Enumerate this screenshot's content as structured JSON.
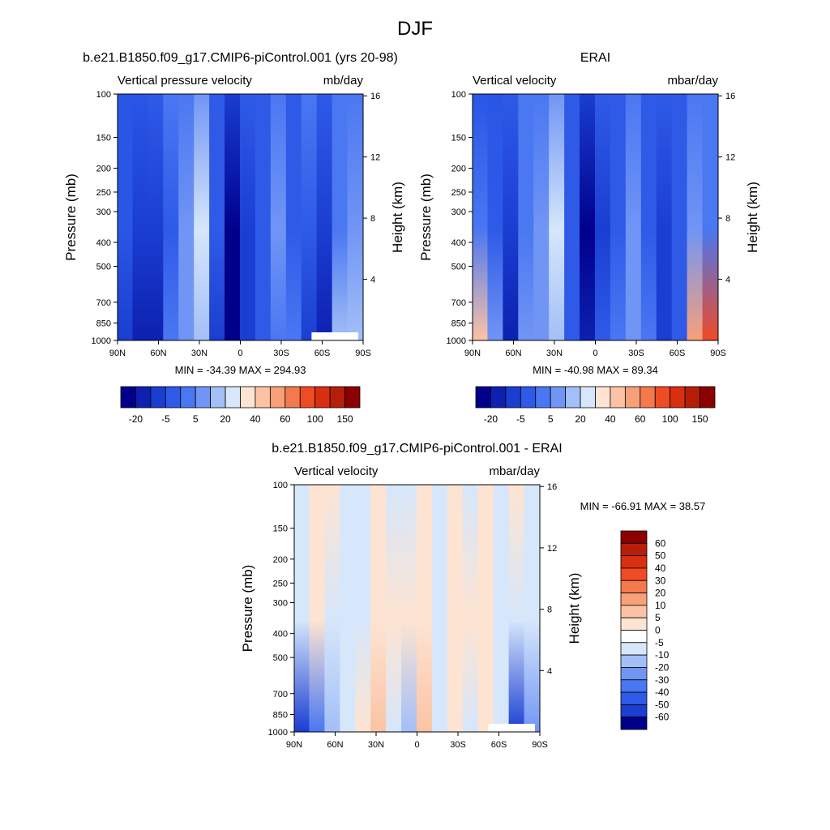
{
  "figure": {
    "title": "DJF"
  },
  "chart_data": [
    {
      "type": "heatmap",
      "title": "b.e21.B1850.f09_g17.CMIP6-piControl.001 (yrs 20-98)",
      "subtitle_left": "Vertical pressure velocity",
      "subtitle_right": "mb/day",
      "xlabel": "",
      "ylabel": "Pressure (mb)",
      "ylabel_right": "Height (km)",
      "x_ticks": [
        "90N",
        "60N",
        "30N",
        "0",
        "30S",
        "60S",
        "90S"
      ],
      "x_values": [
        90,
        60,
        30,
        0,
        -30,
        -60,
        -90
      ],
      "y_ticks": [
        "100",
        "150",
        "200",
        "250",
        "300",
        "400",
        "500",
        "700",
        "850",
        "1000"
      ],
      "y_values": [
        100,
        150,
        200,
        250,
        300,
        400,
        500,
        700,
        850,
        1000
      ],
      "y_scale": "log-pressure",
      "ylim": [
        1000,
        100
      ],
      "height_ticks": [
        "16",
        "12",
        "8",
        "4"
      ],
      "height_values": [
        16,
        12,
        8,
        4
      ],
      "stats": "MIN = -34.39  MAX = 294.93",
      "colorbar": {
        "orientation": "horizontal",
        "labels": [
          "-20",
          "-5",
          "5",
          "20",
          "40",
          "60",
          "100",
          "150"
        ],
        "colors": [
          "#00008b",
          "#0d20b0",
          "#1a3ed1",
          "#2f5ae8",
          "#4a77f2",
          "#7195f5",
          "#a3bff7",
          "#d6e6fb",
          "#fde4d2",
          "#fbc3a4",
          "#f8a078",
          "#f47a4e",
          "#ef4b24",
          "#d92f10",
          "#b51f09",
          "#8b0000"
        ]
      },
      "columns": [
        {
          "lat": 90,
          "top": "#2a56e6",
          "mid": "#2a56e6",
          "bot": "#1a3ed1"
        },
        {
          "lat": 75,
          "top": "#2a56e6",
          "mid": "#1a3ed1",
          "bot": "#0d20b0"
        },
        {
          "lat": 60,
          "top": "#2f5ae8",
          "mid": "#1a3ed1",
          "bot": "#0d20b0"
        },
        {
          "lat": 45,
          "top": "#4a77f2",
          "mid": "#2f5ae8",
          "bot": "#4a77f2"
        },
        {
          "lat": 30,
          "top": "#4a77f2",
          "mid": "#7195f5",
          "bot": "#7195f5"
        },
        {
          "lat": 20,
          "top": "#7195f5",
          "mid": "#d6e6fb",
          "bot": "#a3bff7"
        },
        {
          "lat": 10,
          "top": "#2f5ae8",
          "mid": "#2f5ae8",
          "bot": "#1a3ed1"
        },
        {
          "lat": 0,
          "top": "#1a3ed1",
          "mid": "#00008b",
          "bot": "#00008b"
        },
        {
          "lat": -10,
          "top": "#2f5ae8",
          "mid": "#1a3ed1",
          "bot": "#1a3ed1"
        },
        {
          "lat": -20,
          "top": "#2f5ae8",
          "mid": "#2f5ae8",
          "bot": "#2f5ae8"
        },
        {
          "lat": -30,
          "top": "#4a77f2",
          "mid": "#7195f5",
          "bot": "#4a77f2"
        },
        {
          "lat": -40,
          "top": "#2f5ae8",
          "mid": "#2f5ae8",
          "bot": "#4a77f2"
        },
        {
          "lat": -50,
          "top": "#4a77f2",
          "mid": "#2f5ae8",
          "bot": "#1a3ed1"
        },
        {
          "lat": -60,
          "top": "#2f5ae8",
          "mid": "#1a3ed1",
          "bot": "#0d20b0"
        },
        {
          "lat": -75,
          "top": "#4a77f2",
          "mid": "#4a77f2",
          "bot": "#a3bff7"
        },
        {
          "lat": -90,
          "top": "#4a77f2",
          "mid": "#7195f5",
          "bot": "#a3bff7"
        }
      ]
    },
    {
      "type": "heatmap",
      "title": "ERAI",
      "subtitle_left": "Vertical velocity",
      "subtitle_right": "mbar/day",
      "xlabel": "",
      "ylabel": "Pressure (mb)",
      "ylabel_right": "Height (km)",
      "x_ticks": [
        "90N",
        "60N",
        "30N",
        "0",
        "30S",
        "60S",
        "90S"
      ],
      "x_values": [
        90,
        60,
        30,
        0,
        -30,
        -60,
        -90
      ],
      "y_ticks": [
        "100",
        "150",
        "200",
        "250",
        "300",
        "400",
        "500",
        "700",
        "850",
        "1000"
      ],
      "y_values": [
        100,
        150,
        200,
        250,
        300,
        400,
        500,
        700,
        850,
        1000
      ],
      "y_scale": "log-pressure",
      "ylim": [
        1000,
        100
      ],
      "height_ticks": [
        "16",
        "12",
        "8",
        "4"
      ],
      "height_values": [
        16,
        12,
        8,
        4
      ],
      "stats": "MIN = -40.98  MAX =  89.34",
      "colorbar": {
        "orientation": "horizontal",
        "labels": [
          "-20",
          "-5",
          "5",
          "20",
          "40",
          "60",
          "100",
          "150"
        ],
        "colors": [
          "#00008b",
          "#0d20b0",
          "#1a3ed1",
          "#2f5ae8",
          "#4a77f2",
          "#7195f5",
          "#a3bff7",
          "#d6e6fb",
          "#fde4d2",
          "#fbc3a4",
          "#f8a078",
          "#f47a4e",
          "#ef4b24",
          "#d92f10",
          "#b51f09",
          "#8b0000"
        ]
      },
      "columns": [
        {
          "lat": 90,
          "top": "#2a56e6",
          "mid": "#4a77f2",
          "bot": "#fbc3a4"
        },
        {
          "lat": 75,
          "top": "#2a56e6",
          "mid": "#2f5ae8",
          "bot": "#7195f5"
        },
        {
          "lat": 60,
          "top": "#2f5ae8",
          "mid": "#1a3ed1",
          "bot": "#0d20b0"
        },
        {
          "lat": 45,
          "top": "#4a77f2",
          "mid": "#4a77f2",
          "bot": "#7195f5"
        },
        {
          "lat": 30,
          "top": "#4a77f2",
          "mid": "#7195f5",
          "bot": "#7195f5"
        },
        {
          "lat": 20,
          "top": "#7195f5",
          "mid": "#d6e6fb",
          "bot": "#a3bff7"
        },
        {
          "lat": 10,
          "top": "#2f5ae8",
          "mid": "#2f5ae8",
          "bot": "#2f5ae8"
        },
        {
          "lat": 0,
          "top": "#1a3ed1",
          "mid": "#00008b",
          "bot": "#0d20b0"
        },
        {
          "lat": -10,
          "top": "#2f5ae8",
          "mid": "#1a3ed1",
          "bot": "#2f5ae8"
        },
        {
          "lat": -20,
          "top": "#2f5ae8",
          "mid": "#2f5ae8",
          "bot": "#4a77f2"
        },
        {
          "lat": -30,
          "top": "#4a77f2",
          "mid": "#7195f5",
          "bot": "#7195f5"
        },
        {
          "lat": -40,
          "top": "#2f5ae8",
          "mid": "#2f5ae8",
          "bot": "#4a77f2"
        },
        {
          "lat": -50,
          "top": "#2f5ae8",
          "mid": "#1a3ed1",
          "bot": "#1a3ed1"
        },
        {
          "lat": -60,
          "top": "#2f5ae8",
          "mid": "#2f5ae8",
          "bot": "#2f5ae8"
        },
        {
          "lat": -75,
          "top": "#4a77f2",
          "mid": "#7195f5",
          "bot": "#f8a078"
        },
        {
          "lat": -90,
          "top": "#4a77f2",
          "mid": "#4a77f2",
          "bot": "#ef4b24"
        }
      ]
    },
    {
      "type": "heatmap",
      "title": "b.e21.B1850.f09_g17.CMIP6-piControl.001 - ERAI",
      "subtitle_left": "Vertical velocity",
      "subtitle_right": "mbar/day",
      "xlabel": "",
      "ylabel": "Pressure (mb)",
      "ylabel_right": "Height (km)",
      "x_ticks": [
        "90N",
        "60N",
        "30N",
        "0",
        "30S",
        "60S",
        "90S"
      ],
      "x_values": [
        90,
        60,
        30,
        0,
        -30,
        -60,
        -90
      ],
      "y_ticks": [
        "100",
        "150",
        "200",
        "250",
        "300",
        "400",
        "500",
        "700",
        "850",
        "1000"
      ],
      "y_values": [
        100,
        150,
        200,
        250,
        300,
        400,
        500,
        700,
        850,
        1000
      ],
      "y_scale": "log-pressure",
      "ylim": [
        1000,
        100
      ],
      "height_ticks": [
        "16",
        "12",
        "8",
        "4"
      ],
      "height_values": [
        16,
        12,
        8,
        4
      ],
      "stats": "MIN = -66.91  MAX =  38.57",
      "colorbar": {
        "orientation": "vertical",
        "labels": [
          "60",
          "50",
          "40",
          "30",
          "20",
          "10",
          "5",
          "0",
          "-5",
          "-10",
          "-20",
          "-30",
          "-40",
          "-50",
          "-60"
        ],
        "colors": [
          "#8b0000",
          "#b51f09",
          "#d92f10",
          "#ef4b24",
          "#f47a4e",
          "#f8a078",
          "#fbc3a4",
          "#fde4d2",
          "#ffffff",
          "#d6e6fb",
          "#a3bff7",
          "#7195f5",
          "#4a77f2",
          "#2f5ae8",
          "#1a3ed1",
          "#00008b"
        ]
      },
      "columns": [
        {
          "lat": 90,
          "top": "#d6e6fb",
          "mid": "#d6e6fb",
          "bot": "#1a3ed1"
        },
        {
          "lat": 75,
          "top": "#fde4d2",
          "mid": "#fde4d2",
          "bot": "#4a77f2"
        },
        {
          "lat": 60,
          "top": "#fde4d2",
          "mid": "#d6e6fb",
          "bot": "#a3bff7"
        },
        {
          "lat": 45,
          "top": "#d6e6fb",
          "mid": "#d6e6fb",
          "bot": "#d6e6fb"
        },
        {
          "lat": 30,
          "top": "#d6e6fb",
          "mid": "#d6e6fb",
          "bot": "#fde4d2"
        },
        {
          "lat": 20,
          "top": "#fde4d2",
          "mid": "#fde4d2",
          "bot": "#fbc3a4"
        },
        {
          "lat": 10,
          "top": "#d6e6fb",
          "mid": "#fde4d2",
          "bot": "#d6e6fb"
        },
        {
          "lat": 0,
          "top": "#d6e6fb",
          "mid": "#fde4d2",
          "bot": "#a3bff7"
        },
        {
          "lat": -10,
          "top": "#fde4d2",
          "mid": "#fde4d2",
          "bot": "#fbc3a4"
        },
        {
          "lat": -20,
          "top": "#d6e6fb",
          "mid": "#d6e6fb",
          "bot": "#d6e6fb"
        },
        {
          "lat": -30,
          "top": "#fde4d2",
          "mid": "#fde4d2",
          "bot": "#fde4d2"
        },
        {
          "lat": -40,
          "top": "#d6e6fb",
          "mid": "#fde4d2",
          "bot": "#d6e6fb"
        },
        {
          "lat": -50,
          "top": "#fde4d2",
          "mid": "#fde4d2",
          "bot": "#fde4d2"
        },
        {
          "lat": -60,
          "top": "#d6e6fb",
          "mid": "#d6e6fb",
          "bot": "#d6e6fb"
        },
        {
          "lat": -75,
          "top": "#fde4d2",
          "mid": "#d6e6fb",
          "bot": "#1a3ed1"
        },
        {
          "lat": -90,
          "top": "#d6e6fb",
          "mid": "#d6e6fb",
          "bot": "#7195f5"
        }
      ]
    }
  ]
}
